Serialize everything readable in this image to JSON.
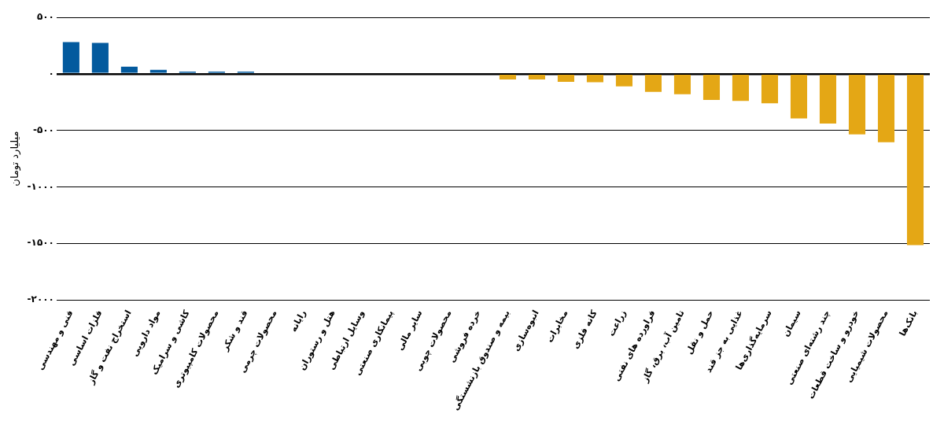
{
  "chart_data": {
    "type": "bar",
    "ylabel": "میلیارد تومان",
    "categories": [
      "فنی و مهندسی",
      "فلزات اساسی",
      "استخراج نفت و گاز",
      "مواد دارویی",
      "کاشی و سرامیک",
      "محصولات کامپیوتری",
      "قند و شکر",
      "محصولات چرمی",
      "رایانه",
      "هتل و رستوران",
      "وسایل ارتباطی",
      "پیمانکاری صنعتی",
      "سایر مالی",
      "محصولات چوبی",
      "خرده فروشی",
      "بیمه و صندوق بازنشستگی",
      "انبوه‌سازی",
      "مخابرات",
      "کانه فلزی",
      "زراعت",
      "فراورده های نفتی",
      "تامین آب، برق، گاز",
      "حمل و نقل",
      "غذایی به جز قند",
      "سرمایه‌گذاری‌ها",
      "سیمان",
      "چند رشته‌ای صنعتی",
      "خودرو و ساخت قطعات",
      "محصولات شیمیایی",
      "بانک‌ها"
    ],
    "values": [
      280,
      274,
      64,
      35,
      20,
      20,
      20,
      0,
      0,
      0,
      0,
      0,
      0,
      0,
      0,
      -50,
      -50,
      -70,
      -75,
      -110,
      -160,
      -180,
      -230,
      -240,
      -260,
      -395,
      -440,
      -535,
      -605,
      -1515
    ],
    "colors": [
      "#035a9e",
      "#035a9e",
      "#035a9e",
      "#035a9e",
      "#035a9e",
      "#035a9e",
      "#035a9e",
      "#035a9e",
      "#035a9e",
      "#035a9e",
      "#035a9e",
      "#035a9e",
      "#035a9e",
      "#035a9e",
      "#035a9e",
      "#e4a715",
      "#e4a715",
      "#e4a715",
      "#e4a715",
      "#e4a715",
      "#e4a715",
      "#e4a715",
      "#e4a715",
      "#e4a715",
      "#e4a715",
      "#e4a715",
      "#e4a715",
      "#e4a715",
      "#e4a715",
      "#e4a715"
    ],
    "ylim": [
      -2000,
      500
    ],
    "yticks": [
      {
        "value": 500,
        "label": "۵۰۰"
      },
      {
        "value": 0,
        "label": "۰"
      },
      {
        "value": -500,
        "label": "-۵۰۰"
      },
      {
        "value": -1000,
        "label": "-۱۰۰۰"
      },
      {
        "value": -1500,
        "label": "-۱۵۰۰"
      },
      {
        "value": -2000,
        "label": "-۲۰۰۰"
      }
    ],
    "grid": "y",
    "legend": false
  }
}
